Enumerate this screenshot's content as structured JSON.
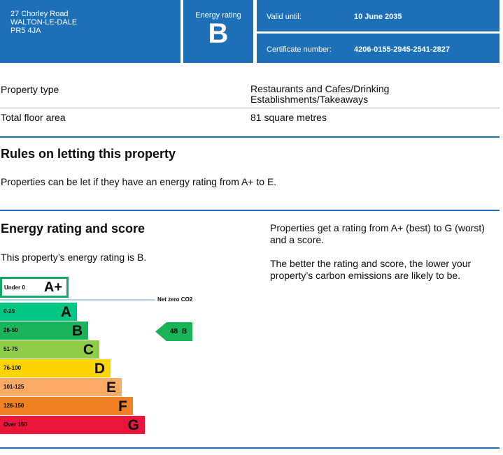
{
  "header": {
    "address": [
      "27 Chorley Road",
      "WALTON-LE-DALE",
      "PR5 4JA"
    ],
    "rating_label": "Energy rating",
    "rating": "B",
    "valid_label": "Valid until:",
    "valid_value": "10 June 2035",
    "cert_label": "Certificate number:",
    "cert_value": "4206-0155-2945-2541-2827"
  },
  "details": [
    {
      "label": "Property type",
      "value": "Restaurants and Cafes/Drinking Establishments/Takeaways"
    },
    {
      "label": "Total floor area",
      "value": "81 square metres"
    }
  ],
  "rules": {
    "title": "Rules on letting this property",
    "text": "Properties can be let if they have an energy rating from A+ to E."
  },
  "energy": {
    "title": "Energy rating and score",
    "statement": "This property’s energy rating is B.",
    "info1": "Properties get a rating from A+ (best) to G (worst) and a score.",
    "info2": "The better the rating and score, the lower your property’s carbon emissions are likely to be.",
    "net_zero": "Net zero CO2",
    "current": {
      "score": "48",
      "band": "B"
    },
    "aplus": {
      "range": "Under 0",
      "band": "A+",
      "color": "#1aa36b"
    },
    "bands": [
      {
        "range": "0-25",
        "band": "A",
        "color": "#00c781"
      },
      {
        "range": "26-50",
        "band": "B",
        "color": "#19b459"
      },
      {
        "range": "51-75",
        "band": "C",
        "color": "#8dce46"
      },
      {
        "range": "76-100",
        "band": "D",
        "color": "#ffd500"
      },
      {
        "range": "101-125",
        "band": "E",
        "color": "#fcaa65"
      },
      {
        "range": "126-150",
        "band": "F",
        "color": "#ef8023"
      },
      {
        "range": "Over 150",
        "band": "G",
        "color": "#e9153b"
      }
    ]
  }
}
